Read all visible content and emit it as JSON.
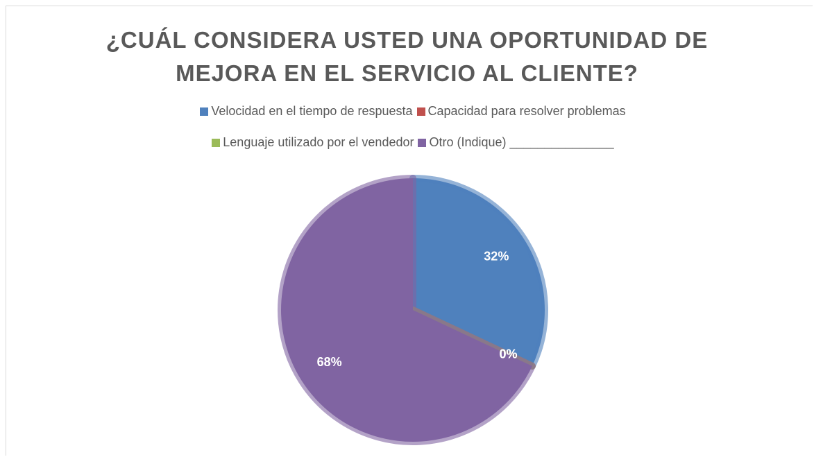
{
  "chart_data": {
    "type": "pie",
    "title": "¿CUÁL CONSIDERA USTED UNA OPORTUNIDAD DE MEJORA EN EL SERVICIO AL CLIENTE?",
    "categories": [
      "Velocidad en el tiempo de respuesta",
      "Capacidad para resolver problemas",
      "Lenguaje utilizado por el vendedor",
      "Otro (Indique) _______________"
    ],
    "values": [
      32,
      0,
      0,
      68
    ],
    "colors": [
      "#4f81bd",
      "#c0504d",
      "#9bbb59",
      "#8064a2"
    ],
    "legend": "top"
  }
}
